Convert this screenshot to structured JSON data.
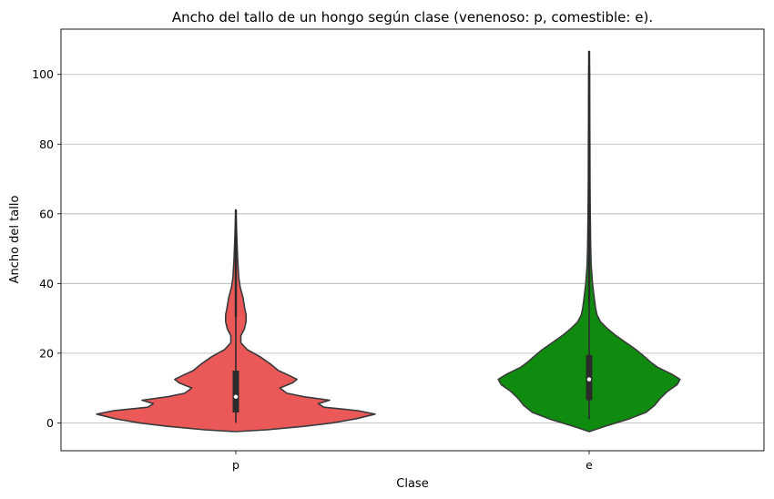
{
  "chart_data": {
    "type": "violin",
    "title": "Ancho del tallo de un hongo según clase (venenoso: p, comestible: e).",
    "xlabel": "Clase",
    "ylabel": "Ancho del tallo",
    "categories": [
      "p",
      "e"
    ],
    "ylim": [
      -8,
      113
    ],
    "yticks": [
      0,
      20,
      40,
      60,
      80,
      100
    ],
    "grid": "y",
    "series": [
      {
        "category": "p",
        "color": "#ea5858",
        "min": 0,
        "q1": 3,
        "median": 7.5,
        "q3": 15,
        "whisker_high": 30.5,
        "max": 61,
        "profile": [
          [
            -2.5,
            0.0
          ],
          [
            -2,
            0.22
          ],
          [
            -1,
            0.48
          ],
          [
            0,
            0.68
          ],
          [
            1.2,
            0.85
          ],
          [
            2.5,
            0.98
          ],
          [
            3.5,
            0.86
          ],
          [
            4.5,
            0.62
          ],
          [
            5.5,
            0.58
          ],
          [
            6.5,
            0.66
          ],
          [
            7.5,
            0.48
          ],
          [
            8.5,
            0.36
          ],
          [
            10,
            0.31
          ],
          [
            11.5,
            0.4
          ],
          [
            12.5,
            0.43
          ],
          [
            13.5,
            0.38
          ],
          [
            15,
            0.3
          ],
          [
            17,
            0.24
          ],
          [
            19,
            0.17
          ],
          [
            21,
            0.08
          ],
          [
            23,
            0.035
          ],
          [
            25,
            0.035
          ],
          [
            27,
            0.06
          ],
          [
            29,
            0.072
          ],
          [
            31,
            0.072
          ],
          [
            33,
            0.062
          ],
          [
            36,
            0.05
          ],
          [
            39,
            0.03
          ],
          [
            42,
            0.02
          ],
          [
            47,
            0.013
          ],
          [
            53,
            0.007
          ],
          [
            57,
            0.004
          ],
          [
            61,
            0.0
          ]
        ]
      },
      {
        "category": "e",
        "color": "#0f8c0f",
        "min": 1,
        "q1": 6.5,
        "median": 12.5,
        "q3": 19.5,
        "whisker_high": 35,
        "max": 106.5,
        "profile": [
          [
            -2.5,
            0.0
          ],
          [
            -1,
            0.11
          ],
          [
            1,
            0.27
          ],
          [
            3,
            0.4
          ],
          [
            5,
            0.46
          ],
          [
            7,
            0.5
          ],
          [
            9,
            0.55
          ],
          [
            11,
            0.62
          ],
          [
            12.5,
            0.64
          ],
          [
            14,
            0.58
          ],
          [
            16,
            0.48
          ],
          [
            17.5,
            0.43
          ],
          [
            19,
            0.39
          ],
          [
            21,
            0.33
          ],
          [
            23,
            0.26
          ],
          [
            25,
            0.19
          ],
          [
            27,
            0.13
          ],
          [
            29,
            0.08
          ],
          [
            31,
            0.055
          ],
          [
            33,
            0.045
          ],
          [
            36,
            0.035
          ],
          [
            40,
            0.024
          ],
          [
            45,
            0.015
          ],
          [
            50,
            0.011
          ],
          [
            60,
            0.008
          ],
          [
            70,
            0.006
          ],
          [
            80,
            0.005
          ],
          [
            90,
            0.004
          ],
          [
            100,
            0.003
          ],
          [
            106.5,
            0.0
          ]
        ]
      }
    ]
  }
}
